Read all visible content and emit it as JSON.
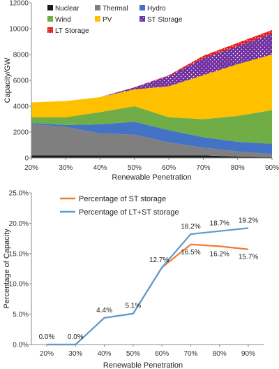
{
  "chart_data": [
    {
      "type": "area",
      "stacked": true,
      "categories": [
        "20%",
        "30%",
        "40%",
        "50%",
        "60%",
        "70%",
        "80%",
        "90%"
      ],
      "xlabel": "Renewable Penetration",
      "ylabel": "Capacity/GW",
      "ylim": [
        0,
        12000
      ],
      "yticks": [
        "0",
        "2000",
        "4000",
        "6000",
        "8000",
        "10000",
        "12000"
      ],
      "legend_position": "top",
      "series": [
        {
          "name": "Nuclear",
          "color": "#1a1a1a",
          "values": [
            200,
            200,
            200,
            200,
            200,
            200,
            100,
            50
          ]
        },
        {
          "name": "Thermal",
          "color": "#7f7f7f",
          "values": [
            2400,
            2200,
            1700,
            1600,
            1000,
            600,
            400,
            250
          ]
        },
        {
          "name": "Hydro",
          "color": "#4472c4",
          "values": [
            100,
            150,
            700,
            1000,
            950,
            800,
            750,
            800
          ]
        },
        {
          "name": "Wind",
          "color": "#70ad47",
          "values": [
            450,
            600,
            950,
            1200,
            1000,
            1400,
            2000,
            2600
          ]
        },
        {
          "name": "PV",
          "color": "#ffc000",
          "values": [
            1150,
            1250,
            1150,
            1300,
            2400,
            3400,
            4000,
            4300
          ]
        },
        {
          "name": "ST Storage",
          "color": "#7030a0",
          "values": [
            0,
            0,
            0,
            150,
            800,
            1300,
            1400,
            1600
          ]
        },
        {
          "name": "LT Storage",
          "color": "#e31a1c",
          "values": [
            0,
            0,
            0,
            20,
            50,
            200,
            250,
            300
          ]
        }
      ]
    },
    {
      "type": "line",
      "categories": [
        "20%",
        "30%",
        "40%",
        "50%",
        "60%",
        "70%",
        "80%",
        "90%"
      ],
      "xlabel": "Renewable Penetration",
      "ylabel": "Percentage of Capacity",
      "ylim": [
        0,
        25
      ],
      "yticks": [
        "0.0%",
        "5.0%",
        "10.0%",
        "15.0%",
        "20.0%",
        "25.0%"
      ],
      "legend_position": "top-left",
      "series": [
        {
          "name": "Percentage of ST storage",
          "color": "#ed7d31",
          "values": [
            0,
            0,
            4.4,
            5.1,
            12.7,
            16.5,
            16.2,
            15.7
          ]
        },
        {
          "name": "Percentage of LT+ST storage",
          "color": "#5b9bd5",
          "values": [
            0,
            0,
            4.4,
            5.1,
            12.7,
            18.2,
            18.7,
            19.2
          ]
        }
      ],
      "data_labels": [
        "0.0%",
        "0.0%",
        "4.4%",
        "5.1%",
        "12.7%",
        "16.5%",
        "16.2%",
        "15.7%",
        "18.2%",
        "18.7%",
        "19.2%"
      ]
    }
  ]
}
